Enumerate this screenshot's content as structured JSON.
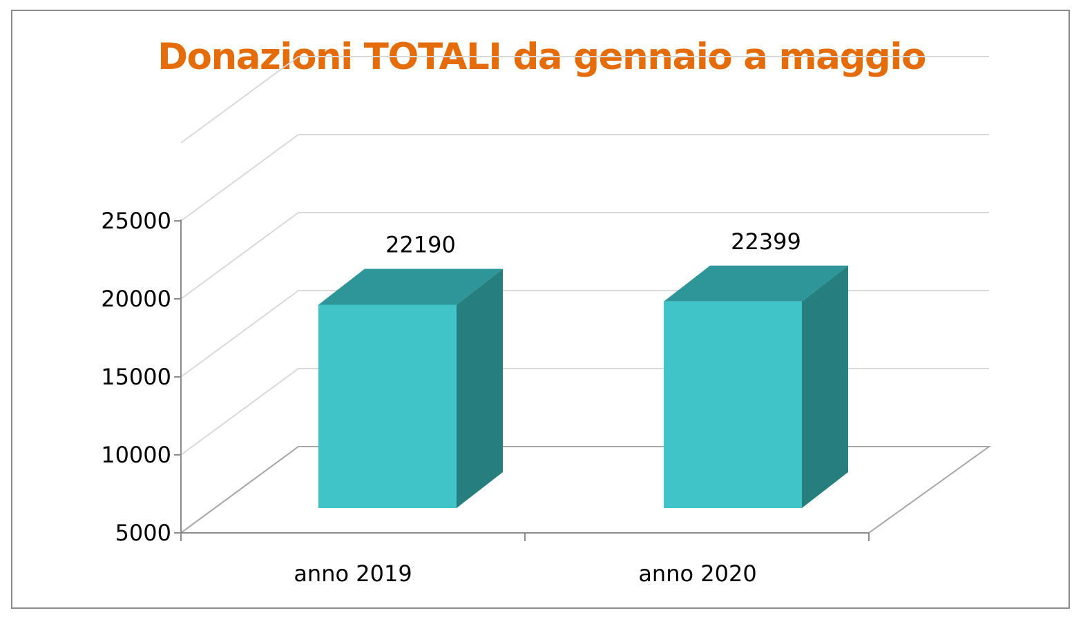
{
  "chart_data": {
    "type": "bar",
    "style": "3d-column",
    "title": "Donazioni TOTALI da gennaio a maggio",
    "xlabel": "",
    "ylabel": "",
    "categories": [
      "anno 2019",
      "anno 2020"
    ],
    "series": [
      {
        "values": [
          22190,
          22399
        ]
      }
    ],
    "data_labels": [
      "22190",
      "22399"
    ],
    "yticks": [
      "5000",
      "10000",
      "15000",
      "20000",
      "25000"
    ],
    "ylim": [
      5000,
      25000
    ],
    "grid": true,
    "legend": "none"
  },
  "colors": {
    "title": "#e46c0a",
    "bar_front": "#40c4c8",
    "bar_top": "#2e9698",
    "bar_side": "#267e7e",
    "grid": "#d9d9d9",
    "axis": "#8c8c8c"
  }
}
